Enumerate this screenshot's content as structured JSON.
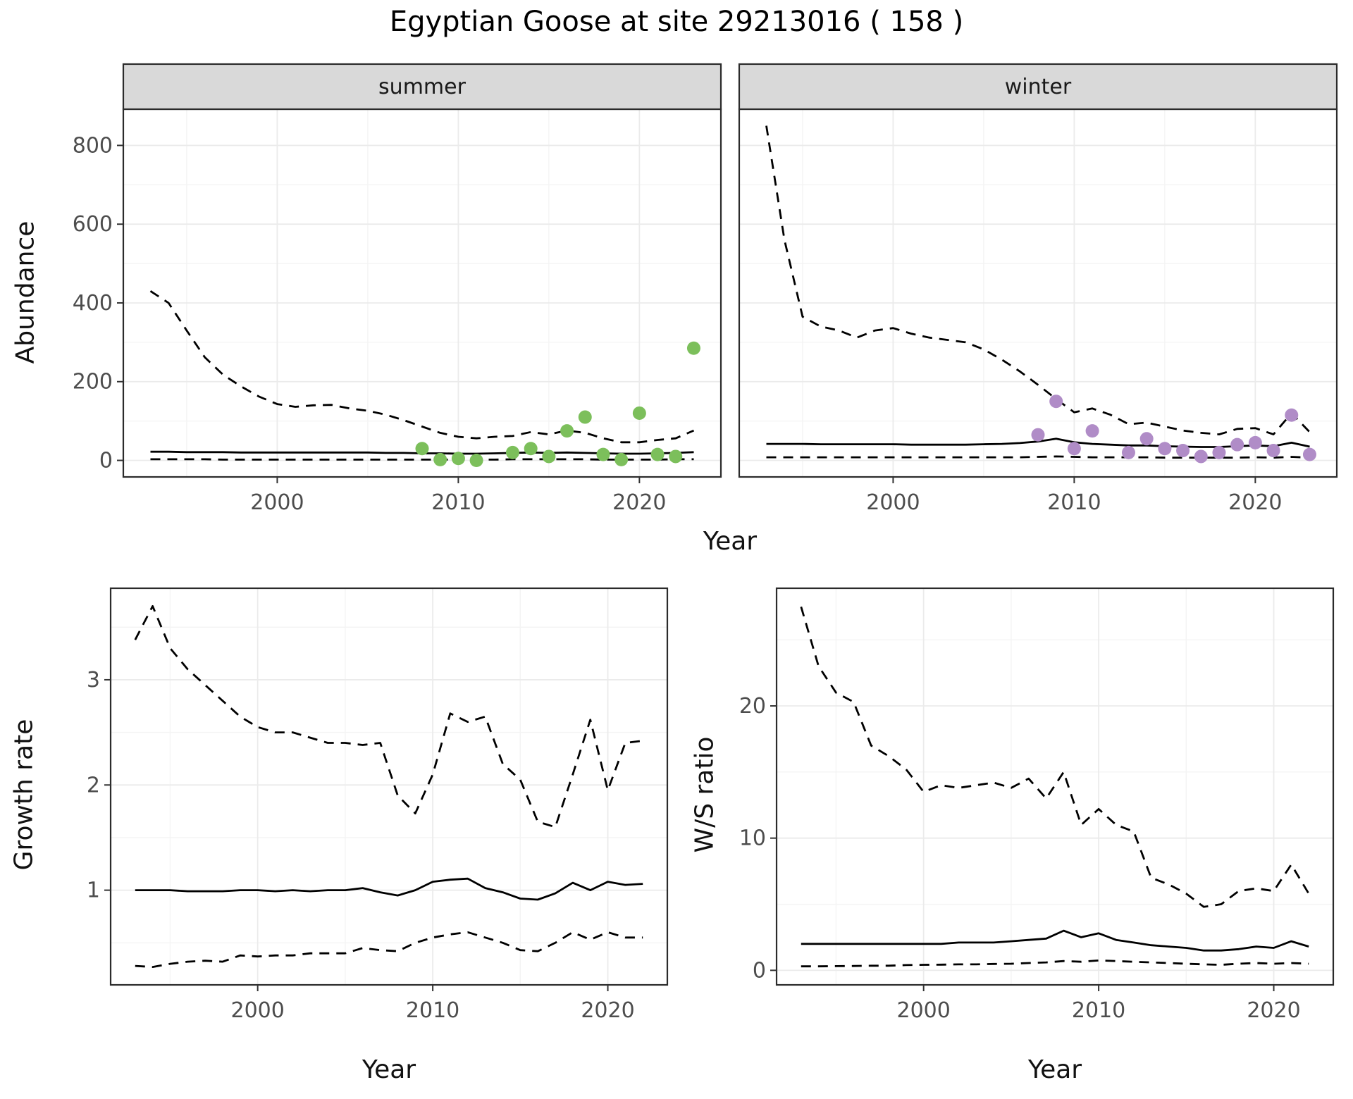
{
  "title": "Egyptian Goose at site 29213016 ( 158 )",
  "style": {
    "background": "#ffffff",
    "line_color": "#000000",
    "grid_major": "#EBEBEB",
    "grid_minor": "#F4F4F4",
    "strip_bg": "#D9D9D9",
    "panel_border": "#2B2B2B",
    "tick_color": "#333333",
    "tick_label_color": "#4D4D4D",
    "point_green": "#7CBF5B",
    "point_purple": "#B08CC7"
  },
  "chart_data": [
    {
      "id": "abundance-summer",
      "type": "line",
      "facet": "summer",
      "xlabel": "Year",
      "ylabel": "Abundance",
      "xlim": [
        1991.5,
        2024.5
      ],
      "ylim": [
        -42,
        892
      ],
      "xticks": [
        2000,
        2010,
        2020
      ],
      "yticks": [
        0,
        200,
        400,
        600,
        800
      ],
      "x": [
        1993,
        1994,
        1995,
        1996,
        1997,
        1998,
        1999,
        2000,
        2001,
        2002,
        2003,
        2004,
        2005,
        2006,
        2007,
        2008,
        2009,
        2010,
        2011,
        2012,
        2013,
        2014,
        2015,
        2016,
        2017,
        2018,
        2019,
        2020,
        2021,
        2022,
        2023
      ],
      "series": [
        {
          "name": "upper-ci",
          "dash": true,
          "values": [
            430,
            400,
            330,
            262,
            218,
            188,
            162,
            143,
            136,
            140,
            141,
            132,
            126,
            116,
            102,
            86,
            70,
            60,
            56,
            60,
            62,
            72,
            66,
            76,
            70,
            56,
            46,
            46,
            52,
            56,
            76
          ]
        },
        {
          "name": "model-fit",
          "dash": false,
          "values": [
            22,
            22,
            21,
            21,
            21,
            20,
            20,
            20,
            20,
            20,
            20,
            20,
            20,
            19,
            19,
            18,
            18,
            17,
            17,
            18,
            19,
            20,
            19,
            20,
            19,
            18,
            17,
            17,
            18,
            19,
            21
          ]
        },
        {
          "name": "lower-ci",
          "dash": true,
          "values": [
            3,
            3,
            3,
            3,
            2,
            2,
            2,
            2,
            2,
            2,
            2,
            2,
            2,
            2,
            2,
            2,
            2,
            2,
            2,
            2,
            3,
            3,
            3,
            3,
            3,
            2,
            2,
            2,
            2,
            3,
            3
          ]
        }
      ],
      "points": {
        "name": "observed-summer",
        "color": "#7CBF5B",
        "x": [
          2008,
          2009,
          2010,
          2011,
          2013,
          2014,
          2015,
          2016,
          2017,
          2018,
          2019,
          2020,
          2021,
          2022,
          2023
        ],
        "y": [
          30,
          2,
          5,
          0,
          20,
          30,
          10,
          75,
          110,
          15,
          2,
          120,
          15,
          10,
          285
        ]
      }
    },
    {
      "id": "abundance-winter",
      "type": "line",
      "facet": "winter",
      "xlabel": "Year",
      "ylabel": "Abundance",
      "xlim": [
        1991.5,
        2024.5
      ],
      "ylim": [
        -42,
        892
      ],
      "xticks": [
        2000,
        2010,
        2020
      ],
      "yticks": [
        0,
        200,
        400,
        600,
        800
      ],
      "x": [
        1993,
        1994,
        1995,
        1996,
        1997,
        1998,
        1999,
        2000,
        2001,
        2002,
        2003,
        2004,
        2005,
        2006,
        2007,
        2008,
        2009,
        2010,
        2011,
        2012,
        2013,
        2014,
        2015,
        2016,
        2017,
        2018,
        2019,
        2020,
        2021,
        2022,
        2023
      ],
      "series": [
        {
          "name": "upper-ci",
          "dash": true,
          "values": [
            850,
            560,
            365,
            340,
            330,
            312,
            330,
            336,
            322,
            312,
            306,
            300,
            282,
            256,
            226,
            192,
            156,
            122,
            132,
            116,
            92,
            96,
            86,
            76,
            70,
            66,
            80,
            82,
            66,
            120,
            72
          ]
        },
        {
          "name": "model-fit",
          "dash": false,
          "values": [
            42,
            42,
            42,
            41,
            41,
            41,
            41,
            41,
            40,
            40,
            40,
            40,
            41,
            42,
            44,
            48,
            55,
            46,
            42,
            40,
            38,
            38,
            36,
            35,
            34,
            34,
            36,
            38,
            36,
            45,
            35
          ]
        },
        {
          "name": "lower-ci",
          "dash": true,
          "values": [
            8,
            8,
            8,
            8,
            8,
            8,
            8,
            8,
            8,
            8,
            8,
            8,
            8,
            8,
            8,
            9,
            10,
            9,
            8,
            8,
            8,
            8,
            7,
            7,
            7,
            7,
            7,
            8,
            7,
            9,
            7
          ]
        }
      ],
      "points": {
        "name": "observed-winter",
        "color": "#B08CC7",
        "x": [
          2008,
          2009,
          2010,
          2011,
          2013,
          2014,
          2015,
          2016,
          2017,
          2018,
          2019,
          2020,
          2021,
          2022,
          2023
        ],
        "y": [
          65,
          150,
          30,
          75,
          20,
          55,
          30,
          25,
          10,
          20,
          40,
          45,
          25,
          115,
          15
        ]
      }
    },
    {
      "id": "growth-rate",
      "type": "line",
      "xlabel": "Year",
      "ylabel": "Growth rate",
      "xlim": [
        1991.6,
        2023.4
      ],
      "ylim": [
        0.1,
        3.87
      ],
      "xticks": [
        2000,
        2010,
        2020
      ],
      "yticks": [
        1,
        2,
        3
      ],
      "x": [
        1993,
        1994,
        1995,
        1996,
        1997,
        1998,
        1999,
        2000,
        2001,
        2002,
        2003,
        2004,
        2005,
        2006,
        2007,
        2008,
        2009,
        2010,
        2011,
        2012,
        2013,
        2014,
        2015,
        2016,
        2017,
        2018,
        2019,
        2020,
        2021,
        2022
      ],
      "series": [
        {
          "name": "upper-ci",
          "dash": true,
          "values": [
            3.38,
            3.7,
            3.3,
            3.1,
            2.95,
            2.8,
            2.65,
            2.55,
            2.5,
            2.5,
            2.45,
            2.4,
            2.4,
            2.38,
            2.4,
            1.9,
            1.73,
            2.1,
            2.68,
            2.6,
            2.65,
            2.2,
            2.05,
            1.65,
            1.6,
            2.1,
            2.62,
            1.95,
            2.4,
            2.42
          ]
        },
        {
          "name": "model-fit",
          "dash": false,
          "values": [
            1.0,
            1.0,
            1.0,
            0.99,
            0.99,
            0.99,
            1.0,
            1.0,
            0.99,
            1.0,
            0.99,
            1.0,
            1.0,
            1.02,
            0.98,
            0.95,
            1.0,
            1.08,
            1.1,
            1.11,
            1.02,
            0.98,
            0.92,
            0.91,
            0.97,
            1.07,
            1.0,
            1.08,
            1.05,
            1.06
          ]
        },
        {
          "name": "lower-ci",
          "dash": true,
          "values": [
            0.28,
            0.27,
            0.3,
            0.32,
            0.33,
            0.32,
            0.38,
            0.37,
            0.38,
            0.38,
            0.4,
            0.4,
            0.4,
            0.45,
            0.43,
            0.42,
            0.5,
            0.55,
            0.58,
            0.6,
            0.55,
            0.5,
            0.43,
            0.42,
            0.5,
            0.6,
            0.53,
            0.6,
            0.55,
            0.55
          ]
        }
      ]
    },
    {
      "id": "ws-ratio",
      "type": "line",
      "xlabel": "Year",
      "ylabel": "W/S ratio",
      "xlim": [
        1991.6,
        2023.4
      ],
      "ylim": [
        -1.1,
        28.9
      ],
      "xticks": [
        2000,
        2010,
        2020
      ],
      "yticks": [
        0,
        10,
        20
      ],
      "x": [
        1993,
        1994,
        1995,
        1996,
        1997,
        1998,
        1999,
        2000,
        2001,
        2002,
        2003,
        2004,
        2005,
        2006,
        2007,
        2008,
        2009,
        2010,
        2011,
        2012,
        2013,
        2014,
        2015,
        2016,
        2017,
        2018,
        2019,
        2020,
        2021,
        2022
      ],
      "series": [
        {
          "name": "upper-ci",
          "dash": true,
          "values": [
            27.5,
            23.0,
            21.0,
            20.3,
            17.0,
            16.2,
            15.2,
            13.5,
            14.0,
            13.8,
            14.0,
            14.2,
            13.8,
            14.5,
            13.0,
            15.0,
            11.0,
            12.2,
            11.0,
            10.5,
            7.0,
            6.5,
            5.8,
            4.8,
            5.0,
            6.0,
            6.2,
            6.0,
            8.0,
            5.8
          ]
        },
        {
          "name": "model-fit",
          "dash": false,
          "values": [
            2.0,
            2.0,
            2.0,
            2.0,
            2.0,
            2.0,
            2.0,
            2.0,
            2.0,
            2.1,
            2.1,
            2.1,
            2.2,
            2.3,
            2.4,
            3.0,
            2.5,
            2.8,
            2.3,
            2.1,
            1.9,
            1.8,
            1.7,
            1.5,
            1.5,
            1.6,
            1.8,
            1.7,
            2.2,
            1.8
          ]
        },
        {
          "name": "lower-ci",
          "dash": true,
          "values": [
            0.3,
            0.3,
            0.32,
            0.33,
            0.35,
            0.35,
            0.4,
            0.42,
            0.43,
            0.45,
            0.45,
            0.48,
            0.5,
            0.55,
            0.6,
            0.7,
            0.65,
            0.75,
            0.7,
            0.65,
            0.6,
            0.55,
            0.5,
            0.45,
            0.42,
            0.5,
            0.55,
            0.5,
            0.55,
            0.5
          ]
        }
      ]
    }
  ]
}
